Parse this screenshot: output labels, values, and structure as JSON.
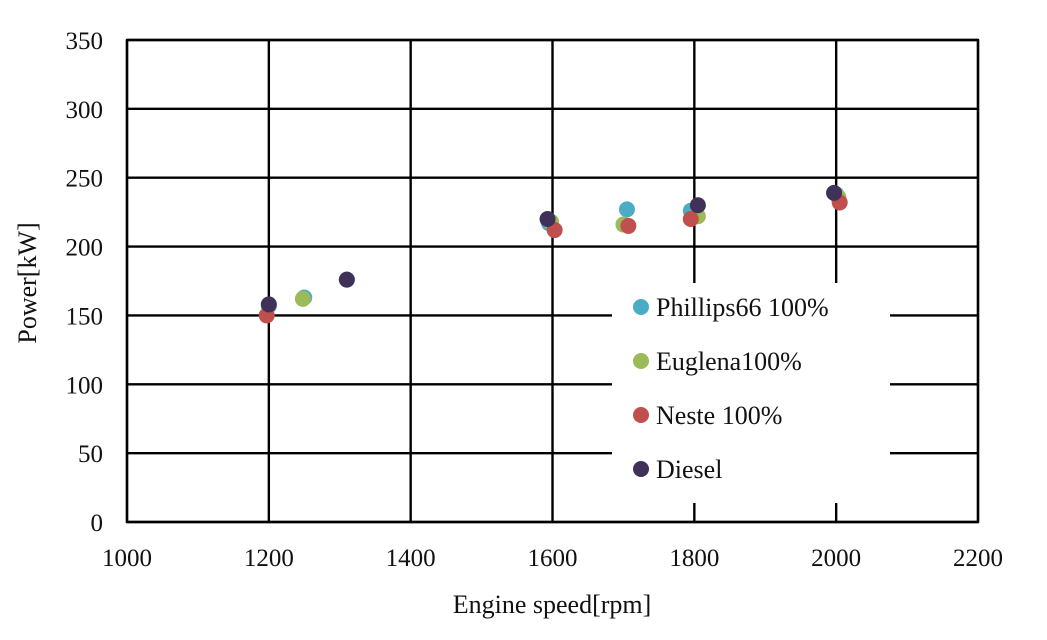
{
  "chart_data": {
    "type": "scatter",
    "xlabel": "Engine speed[rpm]",
    "ylabel": "Power[kW]",
    "xlim": [
      1000,
      2200
    ],
    "ylim": [
      0,
      350
    ],
    "xticks": [
      1000,
      1200,
      1400,
      1600,
      1800,
      2000,
      2200
    ],
    "yticks": [
      0,
      50,
      100,
      150,
      200,
      250,
      300,
      350
    ],
    "grid": true,
    "legend_position": "lower-right inside plot",
    "series": [
      {
        "name": "Phillips66 100%",
        "color": "#4BACC6",
        "points": [
          [
            1200,
            157
          ],
          [
            1250,
            163
          ],
          [
            1310,
            176
          ],
          [
            1595,
            217
          ],
          [
            1705,
            227
          ],
          [
            1795,
            226
          ],
          [
            2000,
            238
          ]
        ]
      },
      {
        "name": "Euglena100%",
        "color": "#9BBB59",
        "points": [
          [
            1248,
            162
          ],
          [
            1598,
            218
          ],
          [
            1700,
            216
          ],
          [
            1805,
            222
          ],
          [
            2003,
            236
          ]
        ]
      },
      {
        "name": "Neste 100%",
        "color": "#C0504D",
        "points": [
          [
            1197,
            150
          ],
          [
            1603,
            212
          ],
          [
            1707,
            215
          ],
          [
            1795,
            220
          ],
          [
            2005,
            232
          ]
        ]
      },
      {
        "name": "Diesel",
        "color": "#3F3158",
        "points": [
          [
            1200,
            158
          ],
          [
            1310,
            176
          ],
          [
            1593,
            220
          ],
          [
            1805,
            230
          ],
          [
            1997,
            239
          ]
        ]
      }
    ]
  }
}
